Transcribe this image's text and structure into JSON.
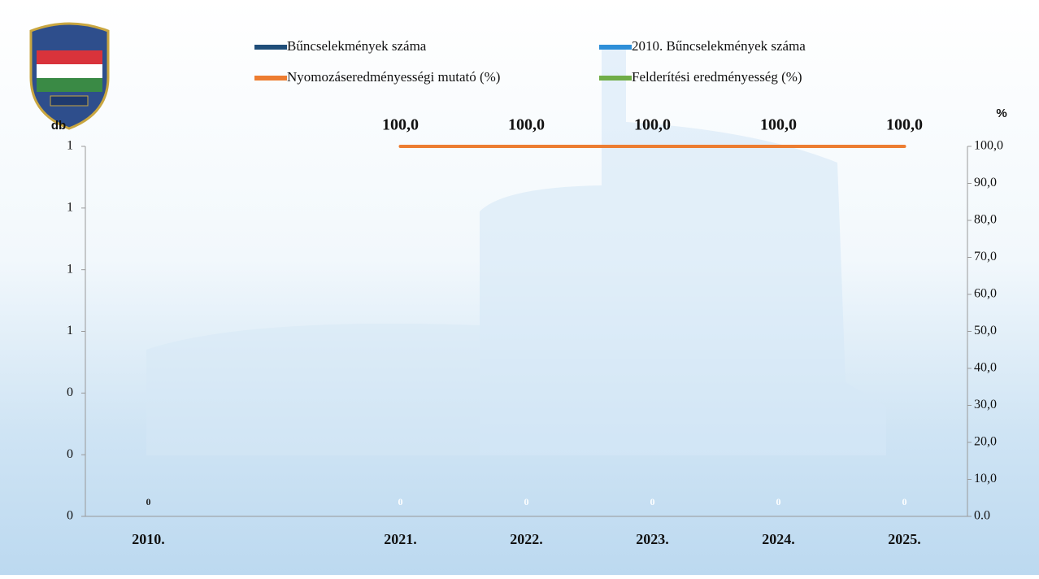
{
  "chart_data": {
    "type": "combo",
    "categories": [
      "2010.",
      null,
      "2021.",
      "2022.",
      "2023.",
      "2024.",
      "2025."
    ],
    "y_label": "db",
    "y2_label": "%",
    "ylim": [
      0,
      1.2
    ],
    "yticks": [
      {
        "value": 0,
        "label": "0"
      },
      {
        "value": 0.2,
        "label": "0"
      },
      {
        "value": 0.4,
        "label": "0"
      },
      {
        "value": 0.6,
        "label": "1"
      },
      {
        "value": 0.8,
        "label": "1"
      },
      {
        "value": 1.0,
        "label": "1"
      },
      {
        "value": 1.2,
        "label": "1"
      }
    ],
    "y2lim": [
      0,
      100
    ],
    "y2ticks": [
      {
        "value": 0,
        "label": "0.0"
      },
      {
        "value": 10,
        "label": "10,0"
      },
      {
        "value": 20,
        "label": "20,0"
      },
      {
        "value": 30,
        "label": "30,0"
      },
      {
        "value": 40,
        "label": "40,0"
      },
      {
        "value": 50,
        "label": "50,0"
      },
      {
        "value": 60,
        "label": "60,0"
      },
      {
        "value": 70,
        "label": "70,0"
      },
      {
        "value": 80,
        "label": "80,0"
      },
      {
        "value": 90,
        "label": "90,0"
      },
      {
        "value": 100,
        "label": "100,0"
      }
    ],
    "series": [
      {
        "name": "Bűncselekmények száma",
        "type": "bar",
        "color": "#1f4e79",
        "values": [
          null,
          null,
          0,
          0,
          0,
          0,
          0
        ]
      },
      {
        "name": "2010. Bűncselekmények száma",
        "type": "bar",
        "color": "#2e8fd8",
        "values": [
          0,
          null,
          null,
          null,
          null,
          null,
          null
        ]
      },
      {
        "name": "Nyomozáseredményességi mutató (%)",
        "type": "line",
        "axis": "y2",
        "color": "#ed7d31",
        "values": [
          null,
          null,
          100,
          100,
          100,
          100,
          100
        ],
        "value_labels": [
          null,
          null,
          "100,0",
          "100,0",
          "100,0",
          "100,0",
          "100,0"
        ]
      },
      {
        "name": "Felderítési eredményesség (%)",
        "type": "line",
        "axis": "y2",
        "color": "#70ad47",
        "values": [
          null,
          null,
          null,
          null,
          null,
          null,
          null
        ]
      }
    ]
  }
}
